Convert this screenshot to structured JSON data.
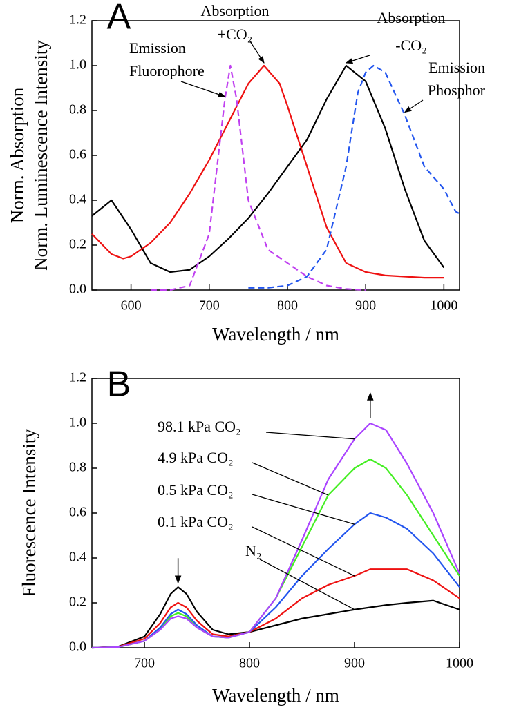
{
  "chart_data": [
    {
      "type": "line",
      "label": "A",
      "xlabel": "Wavelength / nm",
      "ylabel": [
        "Norm. Absorption",
        "Norm. Luminescence Intensity"
      ],
      "xlim": [
        550,
        1020
      ],
      "xticks": [
        600,
        700,
        800,
        900,
        1000
      ],
      "ylim": [
        0,
        1.2
      ],
      "yticks": [
        {
          "value": 0,
          "label": "0.0"
        },
        {
          "value": 0.2,
          "label": "0.2"
        },
        {
          "value": 0.4,
          "label": "0.4"
        },
        {
          "value": 0.6,
          "label": "0.6"
        },
        {
          "value": 0.8,
          "label": "0.8"
        },
        {
          "value": 1,
          "label": "1.0"
        },
        {
          "value": 1.2,
          "label": "1.2"
        }
      ],
      "series": [
        {
          "color": "#000000",
          "line_style": "solid",
          "x": [
            550,
            575,
            600,
            625,
            650,
            675,
            700,
            725,
            750,
            775,
            800,
            825,
            850,
            875,
            900,
            925,
            950,
            975,
            1000
          ],
          "values": [
            0.33,
            0.4,
            0.27,
            0.12,
            0.08,
            0.09,
            0.15,
            0.23,
            0.32,
            0.43,
            0.55,
            0.67,
            0.85,
            1.0,
            0.93,
            0.72,
            0.45,
            0.22,
            0.1
          ]
        },
        {
          "color": "#ee1111",
          "line_style": "solid",
          "x": [
            550,
            575,
            590,
            600,
            625,
            650,
            675,
            700,
            725,
            750,
            770,
            790,
            800,
            825,
            850,
            875,
            900,
            925,
            950,
            975,
            1000
          ],
          "values": [
            0.25,
            0.16,
            0.14,
            0.15,
            0.21,
            0.3,
            0.43,
            0.58,
            0.75,
            0.92,
            1.0,
            0.92,
            0.82,
            0.55,
            0.28,
            0.12,
            0.08,
            0.065,
            0.06,
            0.055,
            0.055
          ]
        },
        {
          "color": "#c040f0",
          "line_style": "dashed",
          "x": [
            625,
            650,
            675,
            700,
            710,
            720,
            727,
            735,
            750,
            775,
            800,
            825,
            850,
            875,
            900
          ],
          "values": [
            0,
            0,
            0.02,
            0.25,
            0.55,
            0.85,
            1.0,
            0.85,
            0.4,
            0.18,
            0.12,
            0.06,
            0.02,
            0.005,
            0
          ]
        },
        {
          "color": "#2255ee",
          "line_style": "dashed",
          "x": [
            750,
            775,
            800,
            825,
            850,
            875,
            890,
            900,
            910,
            925,
            950,
            975,
            1000,
            1015,
            1020
          ],
          "values": [
            0.01,
            0.01,
            0.02,
            0.06,
            0.18,
            0.55,
            0.88,
            0.97,
            1.0,
            0.97,
            0.78,
            0.55,
            0.45,
            0.35,
            0.34
          ]
        }
      ],
      "annotations": [
        {
          "lines": [
            "Absorption",
            "+CO₂"
          ],
          "color": "#ee1111"
        },
        {
          "lines": [
            "Absorption",
            "-CO₂"
          ],
          "color": "#000000"
        },
        {
          "lines": [
            "Emission",
            "Fluorophore"
          ],
          "color": "#c040f0"
        },
        {
          "lines": [
            "Emission",
            "Phosphor"
          ],
          "color": "#2255ee"
        }
      ]
    },
    {
      "type": "line",
      "label": "B",
      "xlabel": "Wavelength / nm",
      "ylabel": [
        "Fluorescence Intensity"
      ],
      "xlim": [
        650,
        1000
      ],
      "xticks": [
        700,
        800,
        900,
        1000
      ],
      "ylim": [
        0,
        1.2
      ],
      "yticks": [
        {
          "value": 0,
          "label": "0.0"
        },
        {
          "value": 0.2,
          "label": "0.2"
        },
        {
          "value": 0.4,
          "label": "0.4"
        },
        {
          "value": 0.6,
          "label": "0.6"
        },
        {
          "value": 0.8,
          "label": "0.8"
        },
        {
          "value": 1,
          "label": "1.0"
        },
        {
          "value": 1.2,
          "label": "1.2"
        }
      ],
      "x": [
        650,
        675,
        700,
        715,
        725,
        732,
        740,
        750,
        765,
        780,
        800,
        825,
        850,
        875,
        900,
        915,
        930,
        950,
        975,
        1000
      ],
      "series": [
        {
          "color": "#000000",
          "line_style": "solid",
          "values": [
            0,
            0.005,
            0.05,
            0.15,
            0.24,
            0.27,
            0.24,
            0.16,
            0.08,
            0.06,
            0.07,
            0.1,
            0.13,
            0.15,
            0.17,
            0.18,
            0.19,
            0.2,
            0.21,
            0.17
          ]
        },
        {
          "color": "#ee1111",
          "line_style": "solid",
          "values": [
            0,
            0.004,
            0.04,
            0.11,
            0.18,
            0.2,
            0.18,
            0.12,
            0.06,
            0.05,
            0.07,
            0.13,
            0.22,
            0.28,
            0.32,
            0.35,
            0.35,
            0.35,
            0.3,
            0.22
          ]
        },
        {
          "color": "#2255ee",
          "line_style": "solid",
          "values": [
            0,
            0.003,
            0.03,
            0.09,
            0.15,
            0.17,
            0.15,
            0.1,
            0.05,
            0.045,
            0.07,
            0.18,
            0.32,
            0.44,
            0.55,
            0.6,
            0.58,
            0.53,
            0.42,
            0.27
          ]
        },
        {
          "color": "#44ee22",
          "line_style": "solid",
          "values": [
            0,
            0.003,
            0.03,
            0.08,
            0.14,
            0.155,
            0.14,
            0.09,
            0.05,
            0.045,
            0.07,
            0.22,
            0.45,
            0.68,
            0.8,
            0.84,
            0.8,
            0.68,
            0.5,
            0.32
          ]
        },
        {
          "color": "#aa44ff",
          "line_style": "solid",
          "values": [
            0,
            0.003,
            0.03,
            0.08,
            0.13,
            0.14,
            0.13,
            0.09,
            0.05,
            0.045,
            0.07,
            0.22,
            0.48,
            0.75,
            0.93,
            1.0,
            0.97,
            0.82,
            0.6,
            0.33
          ]
        }
      ],
      "annotations": [
        {
          "lines": [
            "98.1 kPa CO₂"
          ],
          "color": "#000000"
        },
        {
          "lines": [
            "4.9 kPa CO₂"
          ],
          "color": "#000000"
        },
        {
          "lines": [
            "0.5 kPa CO₂"
          ],
          "color": "#000000"
        },
        {
          "lines": [
            "0.1 kPa CO₂"
          ],
          "color": "#000000"
        },
        {
          "lines": [
            "N₂"
          ],
          "color": "#000000"
        }
      ]
    }
  ]
}
